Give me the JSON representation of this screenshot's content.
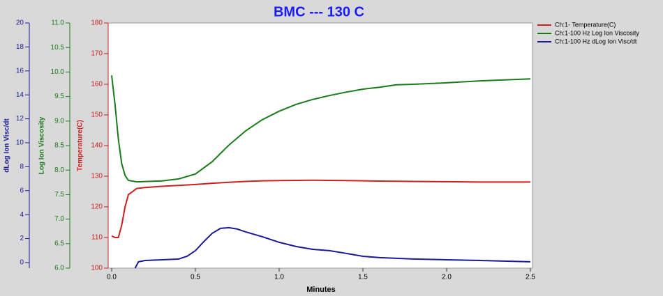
{
  "chart_data": {
    "type": "line",
    "title": "BMC --- 130 C",
    "xlabel": "Minutes",
    "ylabel": "Temperature(C)",
    "y2label": "Log Ion Viscosity",
    "y3label": "dLog Ion Visc/dt",
    "xlim": [
      0,
      2.5
    ],
    "xticks": [
      {
        "value": 0,
        "label": "0.0"
      },
      {
        "value": 0.5,
        "label": "0.5"
      },
      {
        "value": 1,
        "label": "1.0"
      },
      {
        "value": 1.5,
        "label": "1.5"
      },
      {
        "value": 2,
        "label": "2.0"
      },
      {
        "value": 2.5,
        "label": "2.5"
      }
    ],
    "ylim": [
      100,
      180
    ],
    "yticks": [
      100,
      110,
      120,
      130,
      140,
      150,
      160,
      170,
      180
    ],
    "y2lim": [
      6,
      11
    ],
    "y2ticks": [
      {
        "value": 6,
        "label": "6.0"
      },
      {
        "value": 6.5,
        "label": "6.5"
      },
      {
        "value": 7,
        "label": "7.0"
      },
      {
        "value": 7.5,
        "label": "7.5"
      },
      {
        "value": 8,
        "label": "8.0"
      },
      {
        "value": 8.5,
        "label": "8.5"
      },
      {
        "value": 9,
        "label": "9.0"
      },
      {
        "value": 9.5,
        "label": "9.5"
      },
      {
        "value": 10,
        "label": "10.0"
      },
      {
        "value": 10.5,
        "label": "10.5"
      },
      {
        "value": 11,
        "label": "11.0"
      }
    ],
    "y3lim": [
      -0.47,
      20
    ],
    "y3ticks": [
      0,
      2,
      4,
      6,
      8,
      10,
      12,
      14,
      16,
      18,
      20
    ],
    "grid": false,
    "legend": "top-right",
    "series": [
      {
        "name": "Ch:1- Temperature(C)",
        "color": "#cc1f1f",
        "axis": "y",
        "x": [
          0,
          0.02,
          0.04,
          0.06,
          0.08,
          0.1,
          0.15,
          0.2,
          0.3,
          0.4,
          0.5,
          0.6,
          0.7,
          0.8,
          0.9,
          1.0,
          1.2,
          1.4,
          1.6,
          1.8,
          2.0,
          2.2,
          2.5
        ],
        "values": [
          110.5,
          110,
          110,
          114,
          120,
          124,
          126,
          126.3,
          126.7,
          127,
          127.3,
          127.7,
          128,
          128.3,
          128.5,
          128.6,
          128.7,
          128.6,
          128.4,
          128.3,
          128.2,
          128.1,
          128.1
        ]
      },
      {
        "name": "Ch:1-100 Hz Log Ion Viscosity",
        "color": "#1a7a1a",
        "axis": "y2",
        "x": [
          0,
          0.02,
          0.04,
          0.06,
          0.08,
          0.1,
          0.15,
          0.3,
          0.4,
          0.5,
          0.6,
          0.7,
          0.8,
          0.9,
          1.0,
          1.1,
          1.2,
          1.3,
          1.4,
          1.5,
          1.6,
          1.7,
          1.8,
          2.0,
          2.2,
          2.5
        ],
        "values": [
          9.93,
          9.34,
          8.63,
          8.13,
          7.89,
          7.79,
          7.76,
          7.78,
          7.82,
          7.92,
          8.17,
          8.51,
          8.8,
          9.03,
          9.2,
          9.34,
          9.44,
          9.52,
          9.59,
          9.65,
          9.69,
          9.74,
          9.75,
          9.78,
          9.82,
          9.86
        ]
      },
      {
        "name": "Ch:1-100 Hz dLog Ion Visc/dt",
        "color": "#1a1a99",
        "axis": "y3",
        "x": [
          0.14,
          0.16,
          0.2,
          0.3,
          0.4,
          0.45,
          0.5,
          0.55,
          0.6,
          0.65,
          0.7,
          0.75,
          0.8,
          0.9,
          1.0,
          1.1,
          1.2,
          1.3,
          1.4,
          1.5,
          1.6,
          1.8,
          2.0,
          2.2,
          2.5
        ],
        "values": [
          -0.47,
          0.06,
          0.17,
          0.23,
          0.29,
          0.52,
          0.99,
          1.74,
          2.44,
          2.85,
          2.91,
          2.79,
          2.56,
          2.15,
          1.69,
          1.34,
          1.1,
          0.99,
          0.76,
          0.52,
          0.41,
          0.29,
          0.23,
          0.17,
          0.06
        ]
      }
    ]
  }
}
